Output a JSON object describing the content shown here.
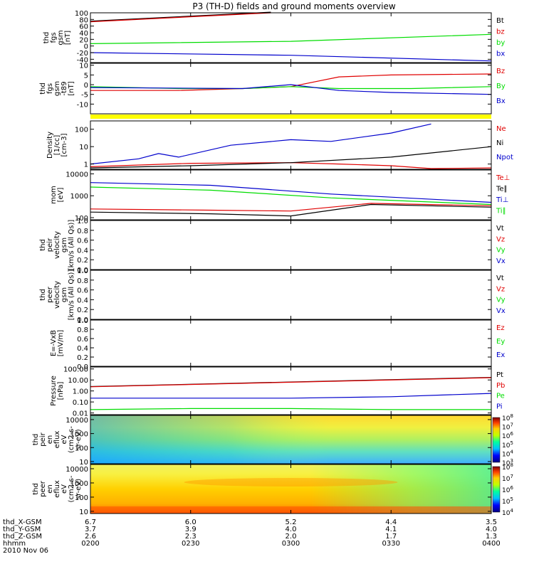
{
  "title": "P3 (TH-D) fields and ground moments overview",
  "ephemeris": {
    "rows": [
      {
        "label": "thd_X-GSM",
        "values": [
          "6.7",
          "6.0",
          "5.2",
          "4.4",
          "3.5"
        ]
      },
      {
        "label": "thd_Y-GSM",
        "values": [
          "3.7",
          "3.9",
          "4.0",
          "4.1",
          "4.0"
        ]
      },
      {
        "label": "thd_Z-GSM",
        "values": [
          "2.6",
          "2.3",
          "2.0",
          "1.7",
          "1.3"
        ]
      },
      {
        "label": "hhmm",
        "values": [
          "0200",
          "0230",
          "0300",
          "0330",
          "0400"
        ]
      }
    ],
    "date": "2010 Nov 06"
  },
  "colors": {
    "black": "#000000",
    "red": "#e00000",
    "green": "#00dd00",
    "blue": "#0000cc",
    "yellow": "#ffff00"
  },
  "chart_data": [
    {
      "type": "line",
      "ylabel": [
        "thd",
        "fgs",
        "gsm",
        "[nT]"
      ],
      "ylim": [
        -50,
        100
      ],
      "ticks": [
        "100",
        "80",
        "60",
        "40",
        "20",
        "0",
        "-20",
        "-40"
      ],
      "tick_values": [
        100,
        80,
        60,
        40,
        20,
        0,
        -20,
        -40
      ],
      "legend": [
        {
          "name": "Bt",
          "color": "black"
        },
        {
          "name": "bz",
          "color": "red"
        },
        {
          "name": "by",
          "color": "green"
        },
        {
          "name": "bx",
          "color": "blue"
        }
      ],
      "series": [
        {
          "name": "Bt",
          "color": "black",
          "x": [
            0,
            0.45
          ],
          "values": [
            75,
            102
          ]
        },
        {
          "name": "bz",
          "color": "red",
          "x": [
            0,
            0.45
          ],
          "values": [
            73,
            100
          ]
        },
        {
          "name": "by",
          "color": "green",
          "x": [
            0,
            0.5,
            1
          ],
          "values": [
            7,
            14,
            35
          ]
        },
        {
          "name": "bx",
          "color": "blue",
          "x": [
            0,
            0.5,
            1
          ],
          "values": [
            -20,
            -28,
            -45
          ]
        }
      ]
    },
    {
      "type": "line",
      "ylabel": [
        "thd",
        "fgs",
        "gsm",
        "-t89",
        "[nT]"
      ],
      "ylim": [
        -15,
        11
      ],
      "ticks": [
        "10",
        "5",
        "0",
        "-5",
        "-10"
      ],
      "tick_values": [
        10,
        5,
        0,
        -5,
        -10
      ],
      "legend": [
        {
          "name": "Bz",
          "color": "red"
        },
        {
          "name": "By",
          "color": "green"
        },
        {
          "name": "Bx",
          "color": "blue"
        }
      ],
      "series": [
        {
          "name": "Bz",
          "color": "red",
          "x": [
            0,
            0.22,
            0.38,
            0.5,
            0.62,
            0.75,
            1
          ],
          "values": [
            -3,
            -3,
            -2,
            -1,
            4,
            5,
            5.5
          ]
        },
        {
          "name": "By",
          "color": "green",
          "x": [
            0,
            0.22,
            0.38,
            0.5,
            0.62,
            0.8,
            1
          ],
          "values": [
            -1,
            -2,
            -2,
            -1,
            -2,
            -2,
            -1
          ]
        },
        {
          "name": "Bx",
          "color": "blue",
          "x": [
            0,
            0.38,
            0.5,
            0.62,
            0.75,
            1
          ],
          "values": [
            -1.5,
            -2,
            0,
            -3,
            -4,
            -5
          ]
        }
      ]
    },
    {
      "type": "line",
      "ylabel": [
        "Density",
        "[1/cc]",
        "[cm-3]"
      ],
      "ylim": [
        0.5,
        300
      ],
      "scale": "log",
      "ticks": [
        "100",
        "10",
        "1"
      ],
      "tick_values": [
        100,
        10,
        1
      ],
      "legend": [
        {
          "name": "Ne",
          "color": "red"
        },
        {
          "name": "Ni",
          "color": "black"
        },
        {
          "name": "Npot",
          "color": "blue"
        }
      ],
      "series": [
        {
          "name": "Ne",
          "color": "red",
          "x": [
            0,
            0.25,
            0.5,
            0.62,
            0.75,
            0.85,
            1
          ],
          "values": [
            0.7,
            1.1,
            1.2,
            1.0,
            0.8,
            0.55,
            0.6
          ]
        },
        {
          "name": "Ni",
          "color": "black",
          "x": [
            0,
            0.25,
            0.5,
            0.75,
            1
          ],
          "values": [
            0.6,
            0.8,
            1.2,
            2.5,
            10
          ]
        },
        {
          "name": "Npot",
          "color": "blue",
          "x": [
            0,
            0.12,
            0.17,
            0.22,
            0.35,
            0.5,
            0.6,
            0.75,
            0.85
          ],
          "values": [
            1,
            2,
            4,
            2.5,
            12,
            25,
            20,
            60,
            200
          ]
        }
      ]
    },
    {
      "type": "line",
      "ylabel": [
        "mom",
        "[eV]"
      ],
      "ylim": [
        80,
        15000
      ],
      "scale": "log",
      "ticks": [
        "10000",
        "1000",
        "100"
      ],
      "tick_values": [
        10000,
        1000,
        100
      ],
      "legend": [
        {
          "name": "Te⊥",
          "color": "red"
        },
        {
          "name": "Te∥",
          "color": "black"
        },
        {
          "name": "Ti⊥",
          "color": "blue"
        },
        {
          "name": "Ti∥",
          "color": "green"
        }
      ],
      "series": [
        {
          "name": "Ti⊥",
          "color": "blue",
          "x": [
            0,
            0.3,
            0.6,
            1
          ],
          "values": [
            4000,
            3000,
            1200,
            500
          ]
        },
        {
          "name": "Ti∥",
          "color": "green",
          "x": [
            0,
            0.3,
            0.6,
            1
          ],
          "values": [
            2500,
            1800,
            800,
            400
          ]
        },
        {
          "name": "Te⊥",
          "color": "red",
          "x": [
            0,
            0.3,
            0.5,
            0.7,
            1
          ],
          "values": [
            250,
            220,
            200,
            450,
            350
          ]
        },
        {
          "name": "Te∥",
          "color": "black",
          "x": [
            0,
            0.3,
            0.5,
            0.7,
            1
          ],
          "values": [
            180,
            150,
            120,
            400,
            300
          ]
        }
      ]
    },
    {
      "type": "line",
      "ylabel": [
        "thd",
        "peir",
        "velocity",
        "gsm",
        "[km/s (All Qs)]"
      ],
      "ylim": [
        0,
        1
      ],
      "ticks": [
        "1.0",
        "0.8",
        "0.6",
        "0.4",
        "0.2",
        "0.0"
      ],
      "tick_values": [
        1,
        0.8,
        0.6,
        0.4,
        0.2,
        0
      ],
      "legend": [
        {
          "name": "Vt",
          "color": "black"
        },
        {
          "name": "Vz",
          "color": "red"
        },
        {
          "name": "Vy",
          "color": "green"
        },
        {
          "name": "Vx",
          "color": "blue"
        }
      ],
      "series": []
    },
    {
      "type": "line",
      "ylabel": [
        "thd",
        "peer",
        "velocity",
        "gsm",
        "[km/s (All Qs)]"
      ],
      "ylim": [
        0,
        1
      ],
      "ticks": [
        "1.0",
        "0.8",
        "0.6",
        "0.4",
        "0.2",
        "0.0"
      ],
      "tick_values": [
        1,
        0.8,
        0.6,
        0.4,
        0.2,
        0
      ],
      "legend": [
        {
          "name": "Vt",
          "color": "black"
        },
        {
          "name": "Vz",
          "color": "red"
        },
        {
          "name": "Vy",
          "color": "green"
        },
        {
          "name": "Vx",
          "color": "blue"
        }
      ],
      "series": []
    },
    {
      "type": "line",
      "ylabel": [
        "E=-VxB",
        "[mV/m]"
      ],
      "ylim": [
        0,
        1
      ],
      "ticks": [
        "1.0",
        "0.8",
        "0.6",
        "0.4",
        "0.2",
        "0.0"
      ],
      "tick_values": [
        1,
        0.8,
        0.6,
        0.4,
        0.2,
        0
      ],
      "legend": [
        {
          "name": "Ez",
          "color": "red"
        },
        {
          "name": "Ey",
          "color": "green"
        },
        {
          "name": "Ex",
          "color": "blue"
        }
      ],
      "series": []
    },
    {
      "type": "line",
      "ylabel": [
        "Pressure",
        "[nPa]"
      ],
      "ylim": [
        0.007,
        150
      ],
      "scale": "log",
      "ticks": [
        "100.00",
        "10.00",
        "1.00",
        "0.10",
        "0.01"
      ],
      "tick_values": [
        100,
        10,
        1,
        0.1,
        0.01
      ],
      "legend": [
        {
          "name": "Pt",
          "color": "black"
        },
        {
          "name": "Pb",
          "color": "red"
        },
        {
          "name": "Pe",
          "color": "green"
        },
        {
          "name": "Pi",
          "color": "blue"
        }
      ],
      "series": [
        {
          "name": "Pt",
          "color": "black",
          "x": [
            0,
            1
          ],
          "values": [
            2.5,
            17
          ]
        },
        {
          "name": "Pb",
          "color": "red",
          "x": [
            0,
            1
          ],
          "values": [
            2.4,
            16
          ]
        },
        {
          "name": "Pi",
          "color": "blue",
          "x": [
            0,
            0.5,
            0.75,
            1
          ],
          "values": [
            0.22,
            0.22,
            0.3,
            0.6
          ]
        },
        {
          "name": "Pe",
          "color": "green",
          "x": [
            0,
            0.25,
            0.5,
            0.75,
            1
          ],
          "values": [
            0.02,
            0.025,
            0.025,
            0.02,
            0.02
          ]
        }
      ]
    },
    {
      "type": "heatmap",
      "ylabel": [
        "thd",
        "peir",
        "en",
        "eflux",
        "eV",
        "(cm2-s-",
        "sr-eV)"
      ],
      "ylim": [
        7,
        20000
      ],
      "scale": "log",
      "ticks": [
        "10000",
        "1000",
        "100",
        "10"
      ],
      "tick_values": [
        10000,
        1000,
        100,
        10
      ],
      "colorbar": {
        "ticks": [
          "10^8",
          "10^7",
          "10^6",
          "10^5",
          "10^4",
          "10^3"
        ]
      }
    },
    {
      "type": "heatmap",
      "ylabel": [
        "thd",
        "peer",
        "en",
        "eflux",
        "eV",
        "(cm2-s-",
        "sr-eV)"
      ],
      "ylim": [
        7,
        20000
      ],
      "scale": "log",
      "ticks": [
        "10000",
        "1000",
        "100",
        "10"
      ],
      "tick_values": [
        10000,
        1000,
        100,
        10
      ],
      "colorbar": {
        "ticks": [
          "10^8",
          "10^7",
          "10^6",
          "10^5",
          "10^4"
        ]
      }
    }
  ]
}
